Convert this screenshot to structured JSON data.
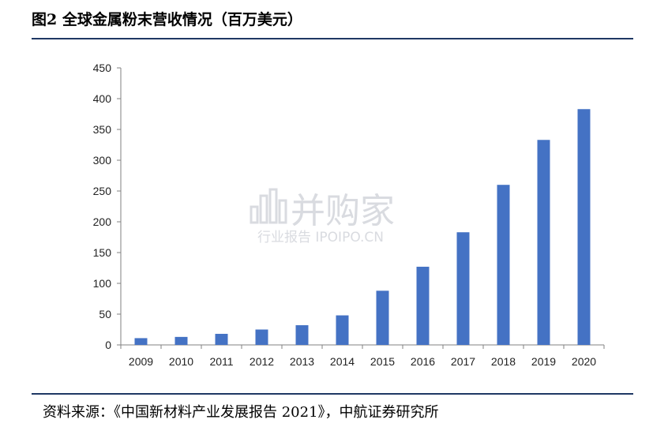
{
  "figure": {
    "title": "图2  全球金属粉末营收情况（百万美元）",
    "source": "资料来源：《中国新材料产业发展报告 2021》，中航证券研究所"
  },
  "watermark": {
    "main": "并购家",
    "sub": "行业报告 IPOIPO.CN"
  },
  "chart_data": {
    "type": "bar",
    "categories": [
      "2009",
      "2010",
      "2011",
      "2012",
      "2013",
      "2014",
      "2015",
      "2016",
      "2017",
      "2018",
      "2019",
      "2020"
    ],
    "values": [
      11,
      13,
      18,
      25,
      32,
      48,
      88,
      127,
      183,
      260,
      333,
      383
    ],
    "title": "",
    "xlabel": "",
    "ylabel": "",
    "ylim": [
      0,
      450
    ],
    "yticks": [
      0,
      50,
      100,
      150,
      200,
      250,
      300,
      350,
      400,
      450
    ],
    "grid": false,
    "legend": "none",
    "bar_color": "#4472c4"
  }
}
